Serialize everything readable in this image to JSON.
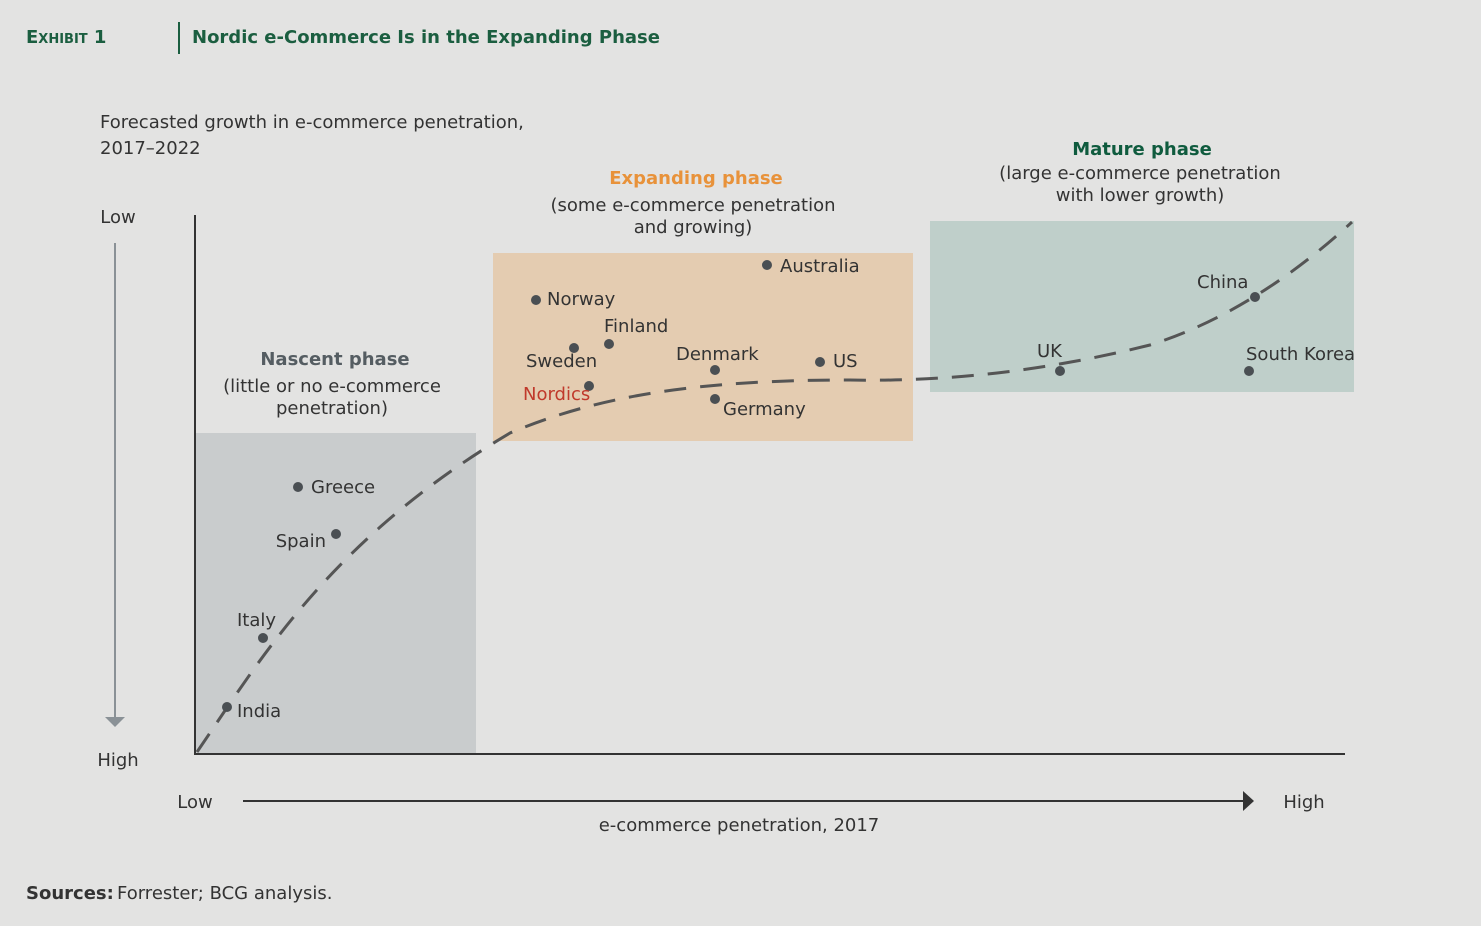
{
  "header": {
    "exhibit": "Exhibit 1",
    "title": "Nordic e-Commerce Is in the Expanding Phase"
  },
  "y_axis": {
    "title": [
      "Forecasted growth in e-commerce penetration,",
      "2017–2022"
    ],
    "top": "Low",
    "bottom": "High"
  },
  "x_axis": {
    "title": "e-commerce penetration, 2017",
    "left": "Low",
    "right": "High"
  },
  "phases": [
    {
      "name": "Nascent phase",
      "description": [
        "(little or no e-commerce",
        "penetration)"
      ]
    },
    {
      "name": "Expanding phase",
      "description": [
        "(some e-commerce penetration",
        "and growing)"
      ]
    },
    {
      "name": "Mature phase",
      "description": [
        "(large e-commerce penetration",
        "with lower growth)"
      ]
    }
  ],
  "countries": [
    "Greece",
    "Spain",
    "Italy",
    "India",
    "Norway",
    "Finland",
    "Sweden",
    "Nordics",
    "Denmark",
    "Germany",
    "Australia",
    "US",
    "UK",
    "China",
    "South Korea"
  ],
  "sources": {
    "label": "Sources:",
    "text": "Forrester; BCG analysis."
  }
}
